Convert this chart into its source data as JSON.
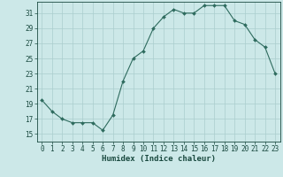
{
  "x": [
    0,
    1,
    2,
    3,
    4,
    5,
    6,
    7,
    8,
    9,
    10,
    11,
    12,
    13,
    14,
    15,
    16,
    17,
    18,
    19,
    20,
    21,
    22,
    23
  ],
  "y": [
    19.5,
    18.0,
    17.0,
    16.5,
    16.5,
    16.5,
    15.5,
    17.5,
    22.0,
    25.0,
    26.0,
    29.0,
    30.5,
    31.5,
    31.0,
    31.0,
    32.0,
    32.0,
    32.0,
    30.0,
    29.5,
    27.5,
    26.5,
    23.0
  ],
  "line_color": "#2e6b5e",
  "marker": "D",
  "marker_size": 2.0,
  "bg_color": "#cce8e8",
  "grid_color": "#aacece",
  "xlabel": "Humidex (Indice chaleur)",
  "ylabel_ticks": [
    15,
    17,
    19,
    21,
    23,
    25,
    27,
    29,
    31
  ],
  "xtick_labels": [
    "0",
    "1",
    "2",
    "3",
    "4",
    "5",
    "6",
    "7",
    "8",
    "9",
    "10",
    "11",
    "12",
    "13",
    "14",
    "15",
    "16",
    "17",
    "18",
    "19",
    "20",
    "21",
    "22",
    "23"
  ],
  "ylim": [
    14.0,
    32.5
  ],
  "xlim": [
    -0.5,
    23.5
  ],
  "title_color": "#1a4a40",
  "label_fontsize": 6.5,
  "tick_fontsize": 5.5
}
